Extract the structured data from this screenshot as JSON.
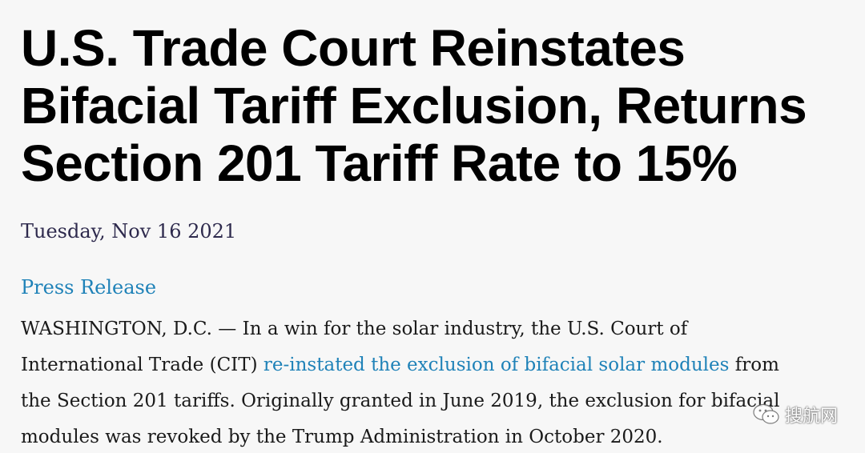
{
  "article": {
    "headline_lines": [
      "U.S. Trade Court Reinstates",
      "Bifacial Tariff Exclusion, Returns",
      "Section 201 Tariff Rate to 15%"
    ],
    "date": "Tuesday, Nov 16 2021",
    "category": "Press Release",
    "body": {
      "line1": "WASHINGTON, D.C. — In a win for the solar industry, the U.S. Court of",
      "line2_before": "International Trade (CIT) ",
      "line2_link": "re-instated the exclusion of bifacial solar modules",
      "line2_after": " from",
      "line3": "the Section 201 tariffs. Originally granted in June 2019, the exclusion for bifacial",
      "line4": "modules was revoked by the Trump Administration in October 2020."
    }
  },
  "watermark": {
    "icon": "wechat-icon",
    "text": "搜航网"
  },
  "colors": {
    "background": "#f7f7f7",
    "headline": "#000000",
    "date": "#2e2a4d",
    "link": "#1f82b8",
    "body": "#1a1a1a"
  }
}
